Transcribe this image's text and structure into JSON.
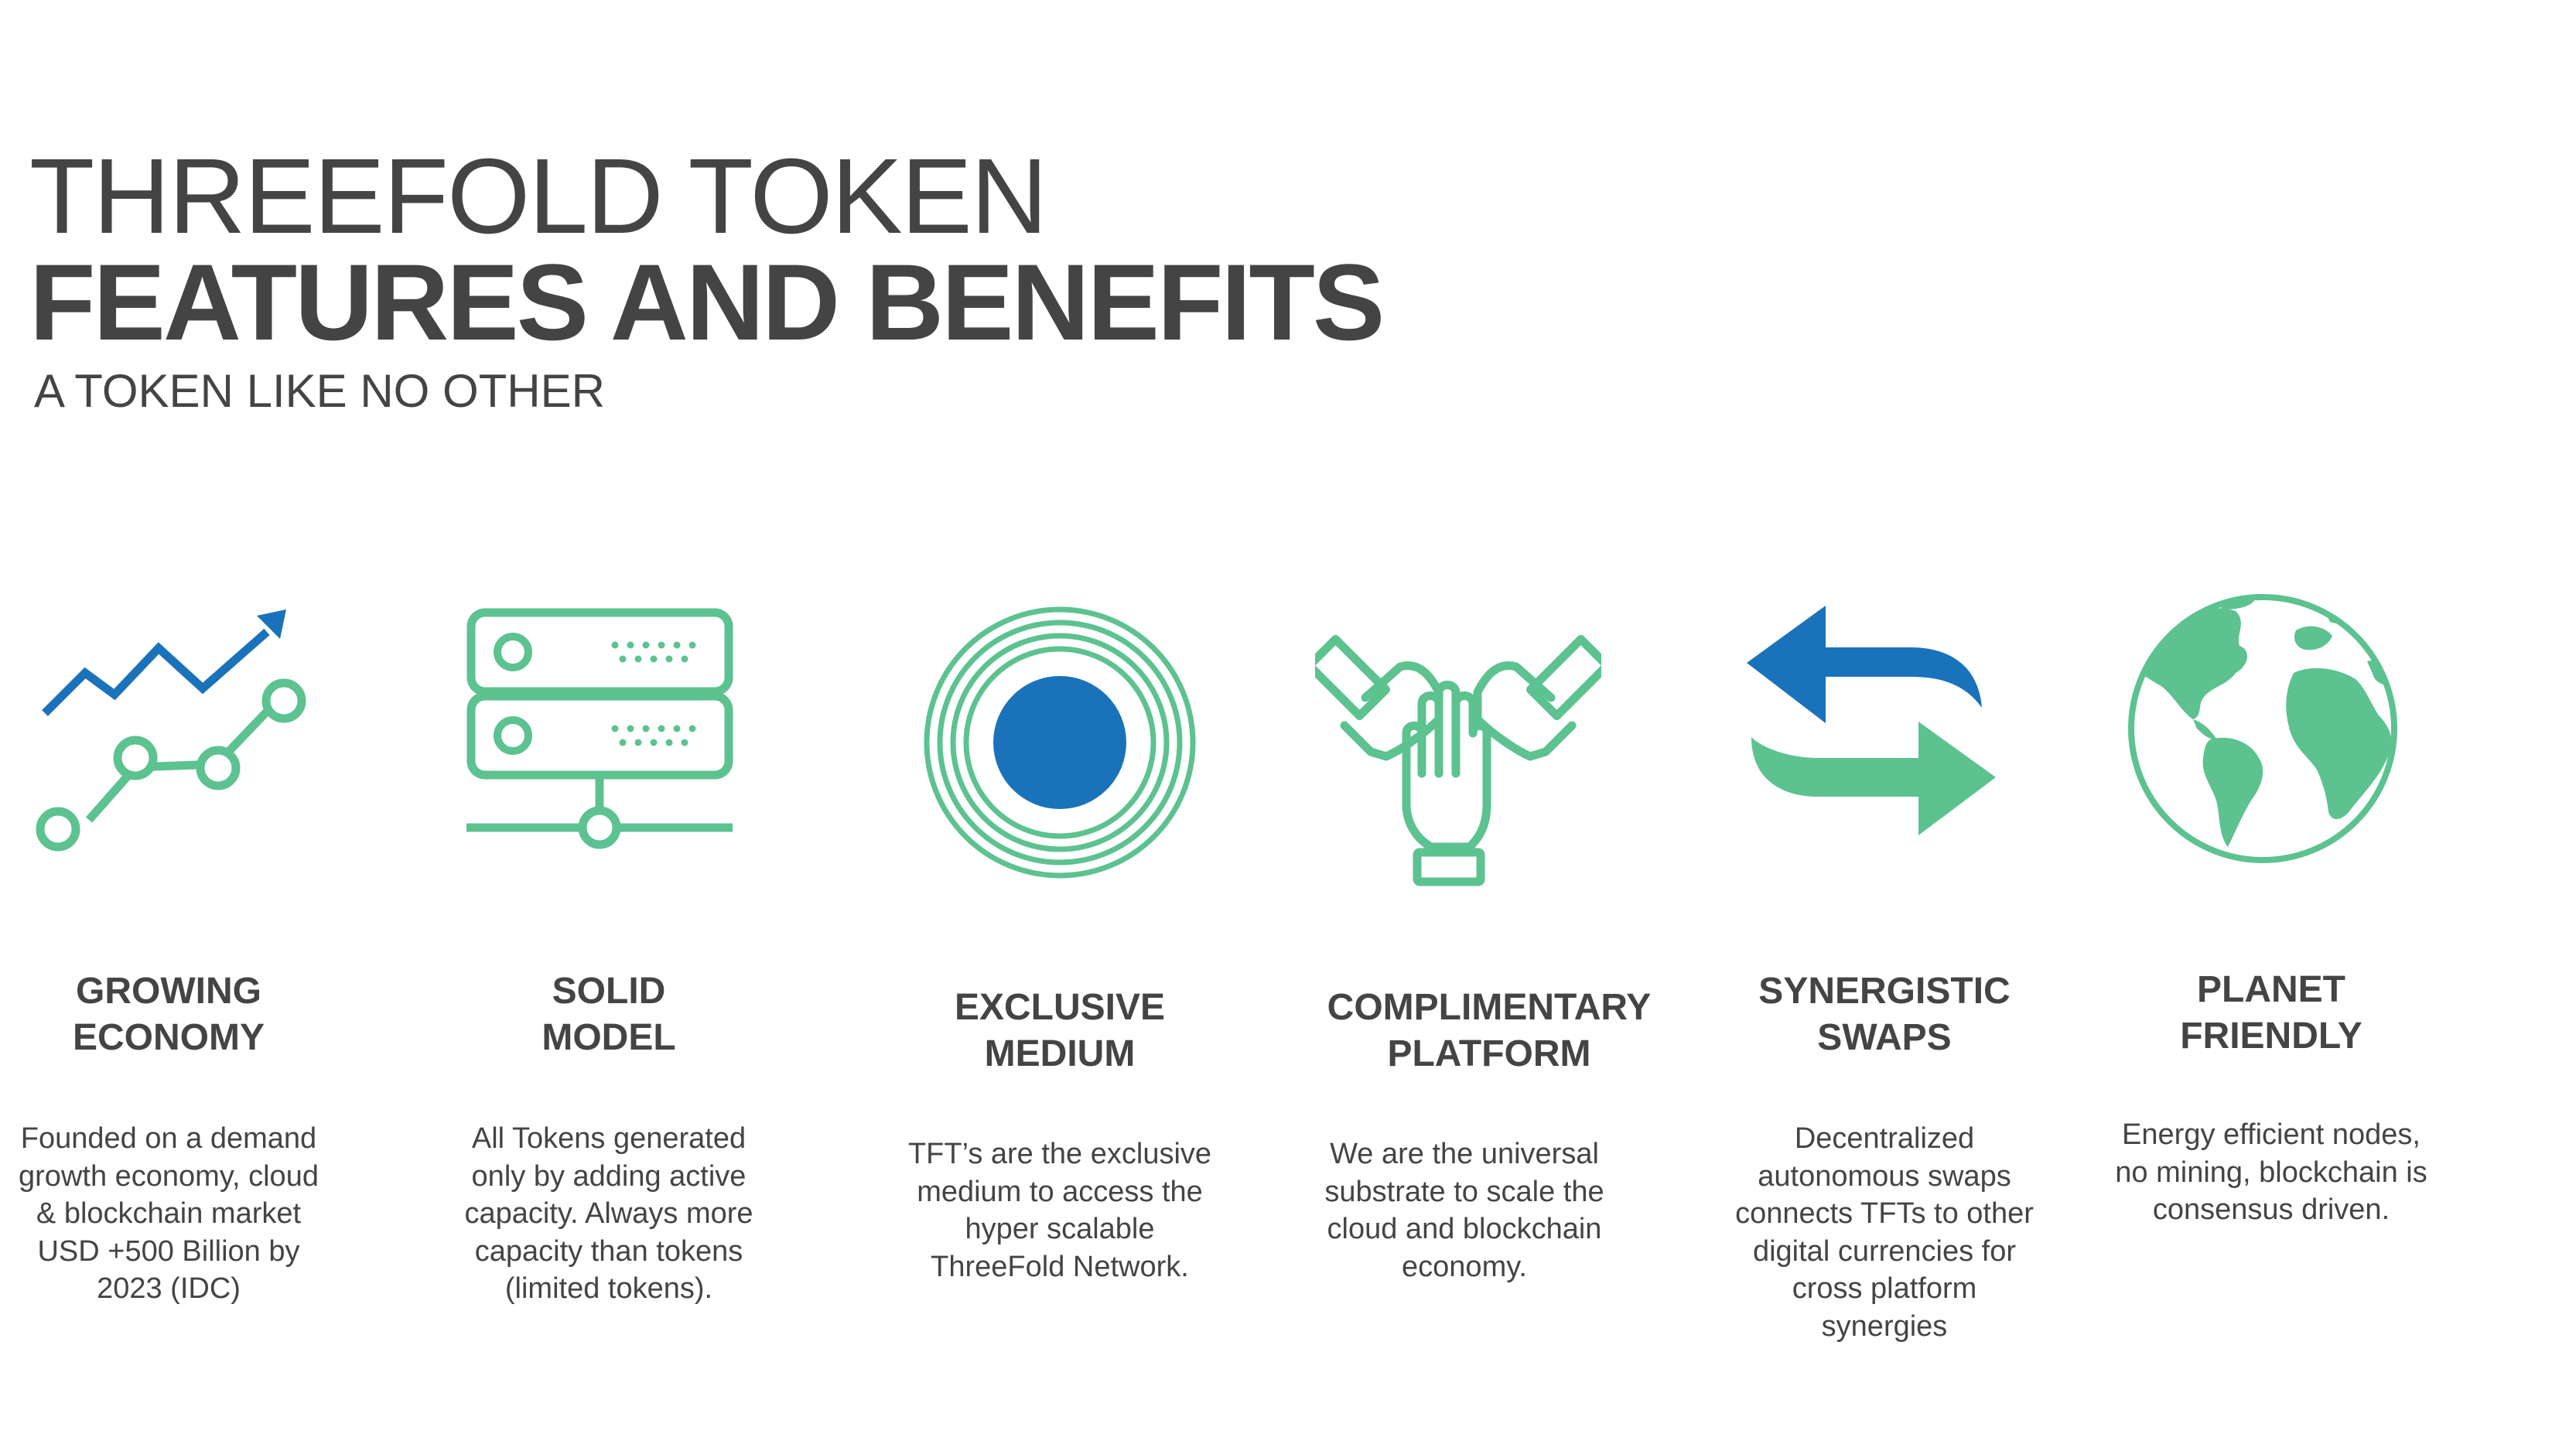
{
  "header": {
    "title_line1": "THREEFOLD TOKEN",
    "title_line2": "FEATURES AND BENEFITS",
    "subtitle": "A TOKEN LIKE NO OTHER"
  },
  "colors": {
    "text": "#444444",
    "green": "#5cc290",
    "blue": "#1a72ba"
  },
  "features": [
    {
      "icon": "growth-chart-icon",
      "title_line1": "GROWING",
      "title_line2": "ECONOMY",
      "desc_lines": [
        "Founded on a demand",
        "growth economy, cloud",
        "& blockchain market",
        "USD +500 Billion by",
        "2023 (IDC)"
      ]
    },
    {
      "icon": "server-icon",
      "title_line1": "SOLID",
      "title_line2": "MODEL",
      "desc_lines": [
        "All Tokens generated",
        "only by adding active",
        "capacity. Always more",
        "capacity than tokens",
        "(limited tokens)."
      ]
    },
    {
      "icon": "target-circle-icon",
      "title_line1": "EXCLUSIVE",
      "title_line2": "MEDIUM",
      "desc_lines": [
        "TFT’s are the exclusive",
        "medium to access the",
        "hyper scalable",
        "ThreeFold Network."
      ]
    },
    {
      "icon": "team-hands-icon",
      "title_line1": "COMPLIMENTARY",
      "title_line2": "PLATFORM",
      "desc_lines": [
        "We are the universal",
        "substrate to scale the",
        "cloud and blockchain",
        "economy."
      ]
    },
    {
      "icon": "swap-arrows-icon",
      "title_line1": "SYNERGISTIC",
      "title_line2": "SWAPS",
      "desc_lines": [
        "Decentralized",
        "autonomous swaps",
        "connects TFTs to other",
        "digital currencies for",
        "cross platform",
        "synergies"
      ]
    },
    {
      "icon": "globe-icon",
      "title_line1": "PLANET",
      "title_line2": "FRIENDLY",
      "desc_lines": [
        "Energy efficient nodes,",
        "no mining, blockchain is",
        "consensus driven."
      ]
    }
  ]
}
